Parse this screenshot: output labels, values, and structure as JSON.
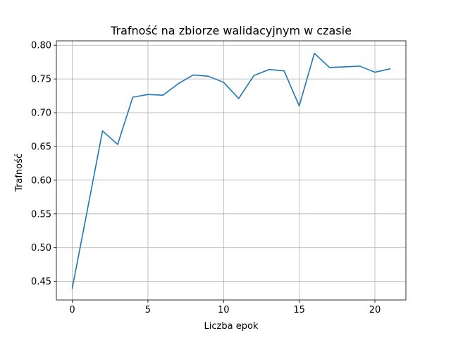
{
  "chart_data": {
    "type": "line",
    "title": "Trafność na zbiorze walidacyjnym w czasie",
    "xlabel": "Liczba epok",
    "ylabel": "Trafność",
    "xlim": [
      -1.05,
      22.05
    ],
    "ylim": [
      0.4225,
      0.8065
    ],
    "xticks": [
      0,
      5,
      10,
      15,
      20
    ],
    "xtick_labels": [
      "0",
      "5",
      "10",
      "15",
      "20"
    ],
    "yticks": [
      0.45,
      0.5,
      0.55,
      0.6,
      0.65,
      0.7,
      0.75,
      0.8
    ],
    "ytick_labels": [
      "0.45",
      "0.50",
      "0.55",
      "0.60",
      "0.65",
      "0.70",
      "0.75",
      "0.80"
    ],
    "grid": true,
    "color": "#1f77b4",
    "series": [
      {
        "x": [
          0,
          1,
          2,
          3,
          4,
          5,
          6,
          7,
          8,
          9,
          10,
          11,
          12,
          13,
          14,
          15,
          16,
          17,
          18,
          19,
          20,
          21
        ],
        "values": [
          0.44,
          0.556,
          0.673,
          0.653,
          0.723,
          0.727,
          0.726,
          0.743,
          0.756,
          0.754,
          0.745,
          0.721,
          0.755,
          0.764,
          0.762,
          0.71,
          0.788,
          0.767,
          0.768,
          0.769,
          0.76,
          0.765
        ]
      }
    ]
  }
}
